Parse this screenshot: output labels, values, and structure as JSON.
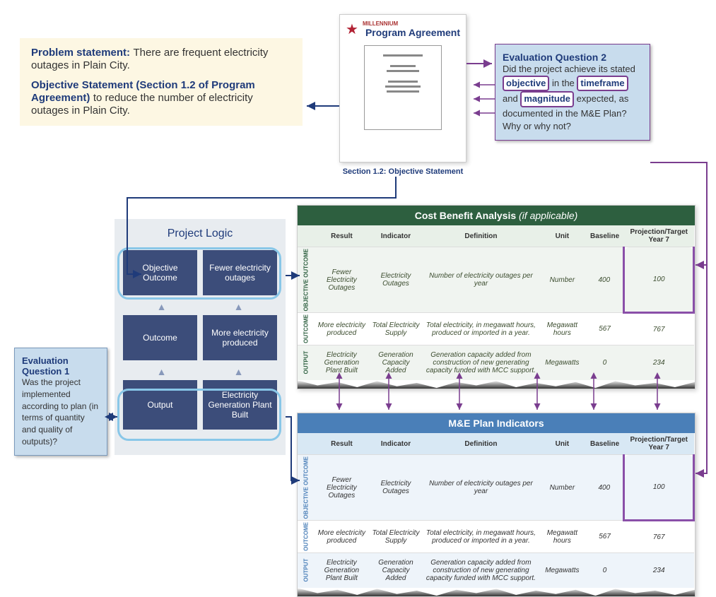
{
  "problem": {
    "ps_label": "Problem statement:",
    "ps_text": " There are frequent electricity outages in Plain City.",
    "os_label": "Objective Statement (Section 1.2 of Program Agreement)",
    "os_text": " to reduce the number of electricity outages in Plain City."
  },
  "doc": {
    "logo_text": "MILLENNIUM",
    "title": "Program Agreement",
    "caption": "Section 1.2: Objective Statement"
  },
  "eq2": {
    "title": "Evaluation Question 2",
    "pre": "Did the project achieve its stated ",
    "h1": "objective",
    "mid1": " in the ",
    "h2": "timeframe",
    "mid2": " and ",
    "h3": "magnitude",
    "post": " expected, as documented in the M&E Plan? Why or why not?"
  },
  "eq1": {
    "title": "Evaluation Question 1",
    "text": "Was the project implemented according to plan (in terms of quantity and quality of outputs)?"
  },
  "project_logic": {
    "title": "Project Logic",
    "rows": [
      {
        "left": "Objective Outcome",
        "right": "Fewer electricity outages"
      },
      {
        "left": "Outcome",
        "right": "More electricity produced"
      },
      {
        "left": "Output",
        "right": "Electricity Generation Plant Built"
      }
    ]
  },
  "cba": {
    "title": "Cost Benefit Analysis",
    "title_note": "(if applicable)",
    "columns": [
      "Result",
      "Indicator",
      "Definition",
      "Unit",
      "Baseline",
      "Projection/Target Year 7"
    ],
    "rows": [
      {
        "label": "OBJECTIVE OUTCOME",
        "result": "Fewer Electricity Outages",
        "indicator": "Electricity Outages",
        "definition": "Number of electricity outages per year",
        "unit": "Number",
        "baseline": "400",
        "target": "100",
        "highlight": true,
        "alt": true
      },
      {
        "label": "OUTCOME",
        "result": "More electricity produced",
        "indicator": "Total Electricity Supply",
        "definition": "Total electricity, in megawatt hours, produced or imported in a year.",
        "unit": "Megawatt hours",
        "baseline": "567",
        "target": "767",
        "highlight": false,
        "alt": false
      },
      {
        "label": "OUTPUT",
        "result": "Electricity Generation Plant Built",
        "indicator": "Generation Capacity Added",
        "definition": "Generation capacity added from construction of new generating capacity funded with MCC support.",
        "unit": "Megawatts",
        "baseline": "0",
        "target": "234",
        "highlight": false,
        "alt": true
      }
    ]
  },
  "me": {
    "title": "M&E Plan Indicators",
    "columns": [
      "Result",
      "Indicator",
      "Definition",
      "Unit",
      "Baseline",
      "Projection/Target Year 7"
    ],
    "rows": [
      {
        "label": "OBJECTIVE OUTCOME",
        "result": "Fewer Electricity Outages",
        "indicator": "Electricity Outages",
        "definition": "Number of electricity outages per year",
        "unit": "Number",
        "baseline": "400",
        "target": "100",
        "highlight": true,
        "alt": true
      },
      {
        "label": "OUTCOME",
        "result": "More electricity produced",
        "indicator": "Total Electricity Supply",
        "definition": "Total electricity, in megawatt hours, produced or imported in a year.",
        "unit": "Megawatt hours",
        "baseline": "567",
        "target": "767",
        "highlight": false,
        "alt": false
      },
      {
        "label": "OUTPUT",
        "result": "Electricity Generation Plant Built",
        "indicator": "Generation Capacity Added",
        "definition": "Generation capacity added from construction of new generating capacity funded with MCC support.",
        "unit": "Megawatts",
        "baseline": "0",
        "target": "234",
        "highlight": false,
        "alt": true
      }
    ]
  },
  "colors": {
    "navy": "#1f3b7a",
    "purple": "#7a3d8f",
    "cream": "#fdf7e3",
    "lightblue": "#c8dced",
    "green_header": "#2d5f3f",
    "blue_header": "#4a7fb8",
    "highlight_cyan": "#89c7e8",
    "highlight_purple": "#8a4fa8"
  }
}
